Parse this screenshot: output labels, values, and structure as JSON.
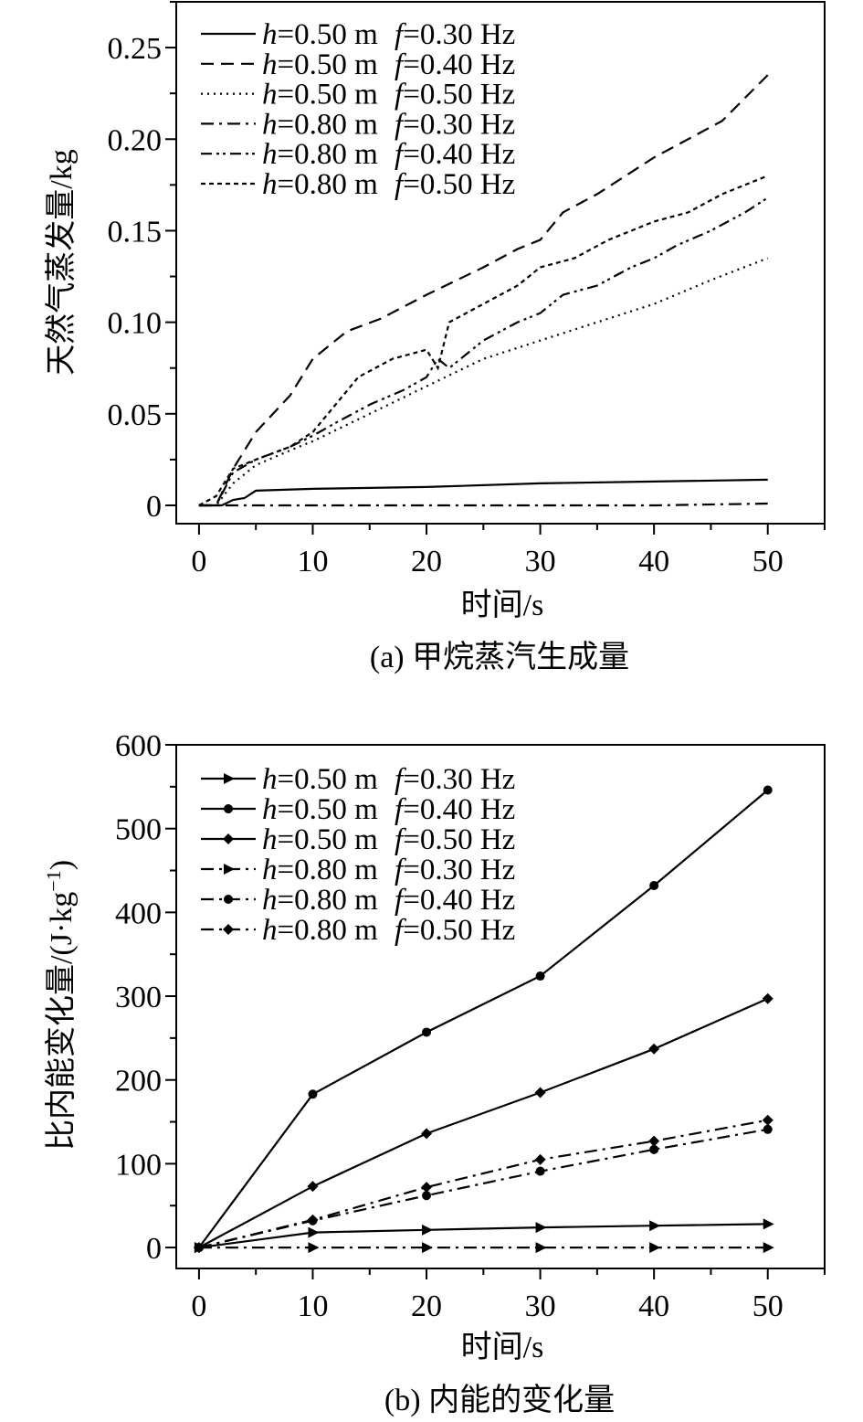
{
  "chart_data": [
    {
      "id": "a",
      "type": "line",
      "caption": "(a) 甲烷蒸汽生成量",
      "xlabel": "时间/s",
      "ylabel": "天然气蒸发量/kg",
      "xlim": [
        -2,
        55
      ],
      "ylim": [
        -0.01,
        0.275
      ],
      "xticks": [
        0,
        10,
        20,
        30,
        40,
        50
      ],
      "yticks": [
        0,
        0.05,
        0.1,
        0.15,
        0.2,
        0.25
      ],
      "ytick_labels": [
        "0",
        "0.05",
        "0.10",
        "0.15",
        "0.20",
        "0.25"
      ],
      "legend_position": "top-left",
      "series": [
        {
          "name": "h=0.50 m  f=0.30 Hz",
          "h": "h",
          "hval": "=0.50 m ",
          "f": "f",
          "fval": "=0.30 Hz",
          "dash": "",
          "x": [
            0,
            2,
            3,
            4,
            5,
            10,
            20,
            30,
            40,
            50
          ],
          "y": [
            0,
            0,
            0.003,
            0.004,
            0.008,
            0.009,
            0.01,
            0.012,
            0.013,
            0.014
          ]
        },
        {
          "name": "h=0.50 m  f=0.40 Hz",
          "h": "h",
          "hval": "=0.50 m ",
          "f": "f",
          "fval": "=0.40 Hz",
          "dash": "14,8",
          "x": [
            0,
            1.5,
            3,
            5,
            8,
            10,
            13,
            16,
            20,
            25,
            28,
            30,
            32,
            35,
            40,
            43,
            46,
            50
          ],
          "y": [
            0,
            0,
            0.02,
            0.04,
            0.06,
            0.08,
            0.095,
            0.102,
            0.115,
            0.13,
            0.14,
            0.145,
            0.16,
            0.17,
            0.19,
            0.2,
            0.21,
            0.235
          ]
        },
        {
          "name": "h=0.50 m  f=0.50 Hz",
          "h": "h",
          "hval": "=0.50 m ",
          "f": "f",
          "fval": "=0.50 Hz",
          "dash": "2,5",
          "x": [
            0,
            1.5,
            3,
            5,
            8,
            10,
            15,
            20,
            25,
            30,
            35,
            40,
            45,
            50
          ],
          "y": [
            0,
            0,
            0.012,
            0.022,
            0.03,
            0.035,
            0.05,
            0.065,
            0.08,
            0.09,
            0.1,
            0.11,
            0.123,
            0.135
          ]
        },
        {
          "name": "h=0.80 m  f=0.30 Hz",
          "h": "h",
          "hval": "=0.80 m ",
          "f": "f",
          "fval": "=0.30 Hz",
          "dash": "14,6,3,6",
          "x": [
            0,
            10,
            20,
            30,
            40,
            50
          ],
          "y": [
            0,
            0,
            0,
            0,
            0,
            0.001
          ]
        },
        {
          "name": "h=0.80 m  f=0.40 Hz",
          "h": "h",
          "hval": "=0.80 m ",
          "f": "f",
          "fval": "=0.40 Hz",
          "dash": "12,5,3,4,3,5",
          "x": [
            0,
            1.5,
            3,
            5,
            8,
            10,
            12,
            15,
            18,
            20,
            21,
            22,
            25,
            28,
            30,
            32,
            35,
            38,
            40,
            42,
            45,
            48,
            50
          ],
          "y": [
            0,
            0,
            0.018,
            0.025,
            0.032,
            0.038,
            0.045,
            0.055,
            0.063,
            0.07,
            0.08,
            0.075,
            0.09,
            0.1,
            0.105,
            0.115,
            0.12,
            0.13,
            0.135,
            0.142,
            0.15,
            0.16,
            0.168
          ]
        },
        {
          "name": "h=0.80 m  f=0.50 Hz",
          "h": "h",
          "hval": "=0.80 m ",
          "f": "f",
          "fval": "=0.50 Hz",
          "dash": "5,4",
          "x": [
            0,
            1.5,
            3,
            5,
            8,
            10,
            12,
            14,
            17,
            20,
            21,
            22,
            25,
            28,
            30,
            33,
            36,
            40,
            43,
            46,
            50
          ],
          "y": [
            0,
            0.005,
            0.02,
            0.025,
            0.032,
            0.04,
            0.055,
            0.07,
            0.08,
            0.085,
            0.075,
            0.1,
            0.11,
            0.12,
            0.13,
            0.135,
            0.145,
            0.155,
            0.16,
            0.17,
            0.18
          ]
        }
      ]
    },
    {
      "id": "b",
      "type": "line",
      "caption": "(b) 内能的变化量",
      "xlabel": "时间/s",
      "ylabel": "比内能变化量/(J·kg",
      "ylabel_sup": "−1",
      "ylabel_end": ")",
      "xlim": [
        -2,
        55
      ],
      "ylim": [
        -25,
        600
      ],
      "xticks": [
        0,
        10,
        20,
        30,
        40,
        50
      ],
      "yticks": [
        0,
        100,
        200,
        300,
        400,
        500,
        600
      ],
      "ytick_labels": [
        "0",
        "100",
        "200",
        "300",
        "400",
        "500",
        "600"
      ],
      "legend_position": "top-left",
      "series": [
        {
          "name": "h=0.50 m  f=0.30 Hz",
          "h": "h",
          "hval": "=0.50 m ",
          "f": "f",
          "fval": "=0.30 Hz",
          "dash": "",
          "marker": "triangle-right",
          "x": [
            0,
            10,
            20,
            30,
            40,
            50
          ],
          "y": [
            0,
            18,
            21,
            24,
            26,
            28
          ]
        },
        {
          "name": "h=0.50 m  f=0.40 Hz",
          "h": "h",
          "hval": "=0.50 m ",
          "f": "f",
          "fval": "=0.40 Hz",
          "dash": "",
          "marker": "circle",
          "x": [
            0,
            10,
            20,
            30,
            40,
            50
          ],
          "y": [
            0,
            183,
            257,
            324,
            432,
            546
          ]
        },
        {
          "name": "h=0.50 m  f=0.50 Hz",
          "h": "h",
          "hval": "=0.50 m ",
          "f": "f",
          "fval": "=0.50 Hz",
          "dash": "",
          "marker": "diamond",
          "x": [
            0,
            10,
            20,
            30,
            40,
            50
          ],
          "y": [
            0,
            73,
            136,
            185,
            237,
            297
          ]
        },
        {
          "name": "h=0.80 m  f=0.30 Hz",
          "h": "h",
          "hval": "=0.80 m ",
          "f": "f",
          "fval": "=0.30 Hz",
          "dash": "14,6,3,6",
          "marker": "triangle-right",
          "x": [
            0,
            10,
            20,
            30,
            40,
            50
          ],
          "y": [
            0,
            0,
            0,
            0,
            0,
            0
          ]
        },
        {
          "name": "h=0.80 m  f=0.40 Hz",
          "h": "h",
          "hval": "=0.80 m ",
          "f": "f",
          "fval": "=0.40 Hz",
          "dash": "14,6,3,6",
          "marker": "circle",
          "x": [
            0,
            10,
            20,
            30,
            40,
            50
          ],
          "y": [
            0,
            32,
            62,
            91,
            117,
            141
          ]
        },
        {
          "name": "h=0.80 m  f=0.50 Hz",
          "h": "h",
          "hval": "=0.80 m ",
          "f": "f",
          "fval": "=0.50 Hz",
          "dash": "14,6,3,6",
          "marker": "diamond",
          "x": [
            0,
            10,
            20,
            30,
            40,
            50
          ],
          "y": [
            0,
            33,
            72,
            105,
            127,
            152
          ]
        }
      ]
    }
  ]
}
